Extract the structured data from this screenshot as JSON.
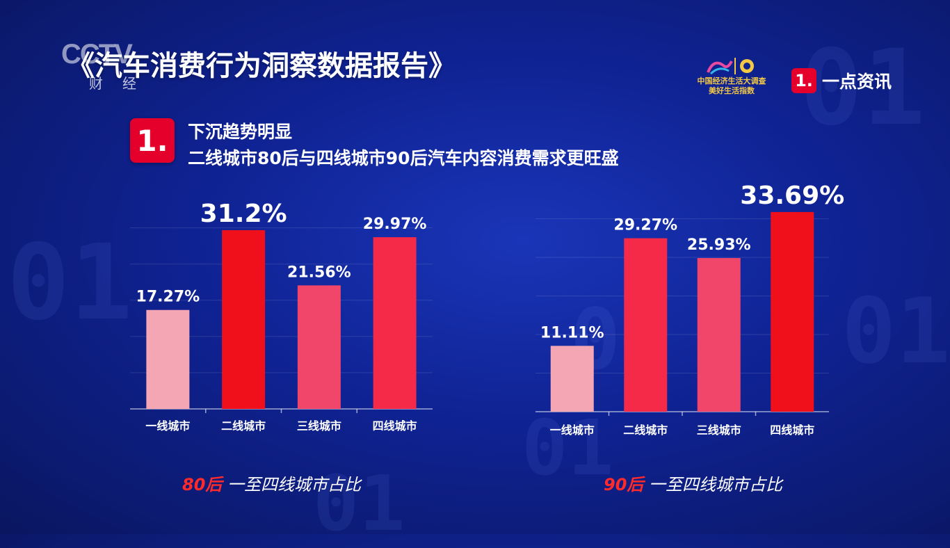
{
  "header": {
    "channel_logo": "CCTV",
    "channel_sub": "财经",
    "report_title": "《汽车消费行为洞察数据报告》",
    "sponsor_line1": "中国经济生活大调查",
    "sponsor_line2": "美好生活指数",
    "brand_badge": "1.",
    "brand_name": "一点资讯"
  },
  "section": {
    "badge": "1.",
    "line1": "下沉趋势明显",
    "line2": "二线城市80后与四线城市90后汽车内容消费需求更旺盛"
  },
  "captions": [
    {
      "highlight": "80后",
      "text": "一至四线城市占比"
    },
    {
      "highlight": "90后",
      "text": "一至四线城市占比"
    }
  ],
  "chart_data": [
    {
      "type": "bar",
      "categories": [
        "一线城市",
        "二线城市",
        "三线城市",
        "四线城市"
      ],
      "values": [
        17.27,
        31.2,
        21.56,
        29.97
      ],
      "value_labels": [
        "17.27%",
        "31.2%",
        "21.56%",
        "29.97%"
      ],
      "bar_colors": [
        "#f4a6b4",
        "#f0101c",
        "#f2456a",
        "#f42a48"
      ],
      "title": "",
      "ylim": [
        0,
        33.5
      ],
      "grid": true
    },
    {
      "type": "bar",
      "categories": [
        "一线城市",
        "二线城市",
        "三线城市",
        "四线城市"
      ],
      "values": [
        11.11,
        29.27,
        25.93,
        33.69
      ],
      "value_labels": [
        "11.11%",
        "29.27%",
        "25.93%",
        "33.69%"
      ],
      "bar_colors": [
        "#f4a6b4",
        "#f42a48",
        "#f2456a",
        "#f0101c"
      ],
      "title": "",
      "ylim": [
        0,
        34.5
      ],
      "grid": true
    }
  ]
}
